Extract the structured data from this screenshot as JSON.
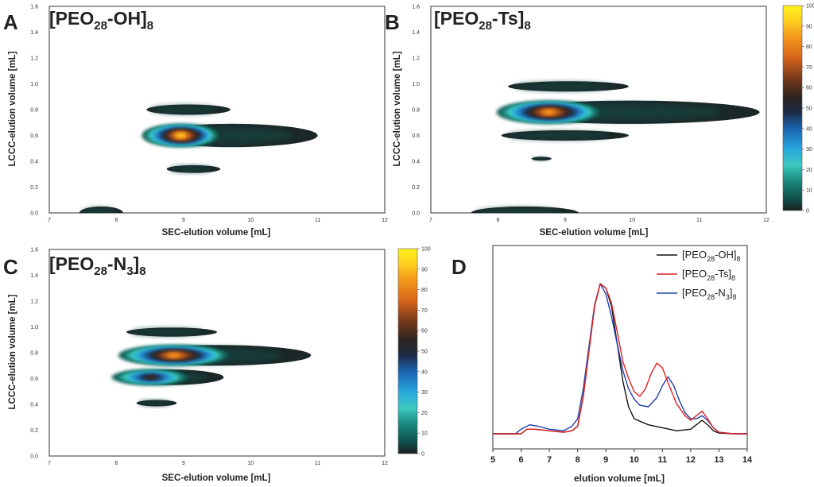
{
  "chart_data": [
    {
      "type": "heatmap",
      "panel": "A",
      "title": {
        "pre": "[PEO",
        "sub1": "28",
        "mid": "-OH]",
        "sub2": "8",
        "plain": "[PEO28-OH]8"
      },
      "xlabel": "SEC-elution volume [mL]",
      "ylabel": "LCCC-elution volume [mL]",
      "xlim": [
        7,
        12
      ],
      "ylim": [
        0.0,
        1.6
      ],
      "xticks": [
        "7",
        "8",
        "9",
        "10",
        "11",
        "12"
      ],
      "yticks": [
        "0.0",
        "0.2",
        "0.4",
        "0.6",
        "0.8",
        "1.0",
        "1.2",
        "1.4",
        "1.6"
      ],
      "blobs": [
        {
          "name": "main",
          "x_range": [
            8.45,
            11.0
          ],
          "y_center": 0.6,
          "y_halfwidth": 0.09,
          "peak_x": 8.95,
          "peak_intensity": 95
        },
        {
          "name": "upper",
          "x_range": [
            8.45,
            9.7
          ],
          "y_center": 0.8,
          "y_halfwidth": 0.04,
          "peak_intensity": 45
        },
        {
          "name": "lower",
          "x_range": [
            8.75,
            9.55
          ],
          "y_center": 0.34,
          "y_halfwidth": 0.03,
          "peak_intensity": 45
        },
        {
          "name": "baseline",
          "x_range": [
            7.45,
            8.1
          ],
          "y_center": 0.0,
          "y_halfwidth": 0.05,
          "peak_intensity": 45
        }
      ]
    },
    {
      "type": "heatmap",
      "panel": "B",
      "title": {
        "pre": "[PEO",
        "sub1": "28",
        "mid": "-Ts]",
        "sub2": "8",
        "plain": "[PEO28-Ts]8"
      },
      "xlabel": "SEC-elution volume [mL]",
      "ylabel": "LCCC-elution volume [mL]",
      "xlim": [
        7,
        12
      ],
      "ylim": [
        0.0,
        1.6
      ],
      "xticks": [
        "7",
        "8",
        "9",
        "10",
        "11",
        "12"
      ],
      "yticks": [
        "0.0",
        "0.2",
        "0.4",
        "0.6",
        "0.8",
        "1.0",
        "1.2",
        "1.4",
        "1.6"
      ],
      "blobs": [
        {
          "name": "main",
          "x_range": [
            8.05,
            11.9
          ],
          "y_center": 0.78,
          "y_halfwidth": 0.09,
          "peak_x": 8.75,
          "peak_intensity": 85
        },
        {
          "name": "upper",
          "x_range": [
            8.15,
            9.95
          ],
          "y_center": 0.98,
          "y_halfwidth": 0.04,
          "peak_intensity": 45
        },
        {
          "name": "lower",
          "x_range": [
            8.05,
            9.95
          ],
          "y_center": 0.6,
          "y_halfwidth": 0.04,
          "peak_intensity": 45
        },
        {
          "name": "spot",
          "x_range": [
            8.5,
            8.8
          ],
          "y_center": 0.42,
          "y_halfwidth": 0.015,
          "peak_intensity": 45
        },
        {
          "name": "baseline",
          "x_range": [
            7.6,
            9.2
          ],
          "y_center": 0.0,
          "y_halfwidth": 0.05,
          "peak_intensity": 45
        }
      ]
    },
    {
      "type": "heatmap",
      "panel": "C",
      "title": {
        "pre": "[PEO",
        "sub1": "28",
        "mid": "-N",
        "sub2": "3",
        "post": "]",
        "sub3": "8",
        "plain": "[PEO28-N3]8"
      },
      "xlabel": "SEC-elution volume [mL]",
      "ylabel": "LCCC-elution volume [mL]",
      "xlim": [
        7,
        12
      ],
      "ylim": [
        0.0,
        1.6
      ],
      "xticks": [
        "7",
        "8",
        "9",
        "10",
        "11",
        "12"
      ],
      "yticks": [
        "0.0",
        "0.2",
        "0.4",
        "0.6",
        "0.8",
        "1.0",
        "1.2",
        "1.4",
        "1.6"
      ],
      "blobs": [
        {
          "name": "main",
          "x_range": [
            8.1,
            10.9
          ],
          "y_center": 0.78,
          "y_halfwidth": 0.08,
          "peak_x": 8.85,
          "peak_intensity": 85
        },
        {
          "name": "upper",
          "x_range": [
            8.15,
            9.5
          ],
          "y_center": 0.96,
          "y_halfwidth": 0.035,
          "peak_intensity": 45
        },
        {
          "name": "lower",
          "x_range": [
            8.0,
            9.6
          ],
          "y_center": 0.61,
          "y_halfwidth": 0.06,
          "peak_x": 8.5,
          "peak_intensity": 60
        },
        {
          "name": "spot",
          "x_range": [
            8.3,
            8.9
          ],
          "y_center": 0.41,
          "y_halfwidth": 0.025,
          "peak_intensity": 45
        }
      ]
    },
    {
      "type": "line",
      "panel": "D",
      "xlabel": "elution volume [mL]",
      "ylabel": "",
      "xlim": [
        5,
        14
      ],
      "ylim": [
        0,
        1.05
      ],
      "xticks": [
        "5",
        "6",
        "7",
        "8",
        "9",
        "10",
        "11",
        "12",
        "13",
        "14"
      ],
      "series": [
        {
          "name": "[PEO28-OH]8",
          "label": {
            "pre": "[PEO",
            "sub1": "28",
            "mid": "-OH]",
            "sub2": "8"
          },
          "color": "#111111",
          "x": [
            5.0,
            6.0,
            6.2,
            6.5,
            7.0,
            7.5,
            7.8,
            8.0,
            8.2,
            8.4,
            8.6,
            8.8,
            9.0,
            9.2,
            9.4,
            9.6,
            9.8,
            10.0,
            10.5,
            11.0,
            11.5,
            12.0,
            12.2,
            12.4,
            12.6,
            12.8,
            13.0,
            13.5,
            14.0
          ],
          "y": [
            0.0,
            0.0,
            0.03,
            0.03,
            0.02,
            0.01,
            0.02,
            0.05,
            0.25,
            0.55,
            0.85,
            1.0,
            0.97,
            0.85,
            0.6,
            0.35,
            0.18,
            0.1,
            0.06,
            0.04,
            0.02,
            0.03,
            0.06,
            0.09,
            0.06,
            0.02,
            0.005,
            0.0,
            0.0
          ]
        },
        {
          "name": "[PEO28-Ts]8",
          "label": {
            "pre": "[PEO",
            "sub1": "28",
            "mid": "-Ts]",
            "sub2": "8"
          },
          "color": "#e02020",
          "x": [
            5.0,
            6.0,
            6.2,
            6.5,
            7.0,
            7.5,
            7.8,
            8.0,
            8.2,
            8.4,
            8.6,
            8.8,
            9.0,
            9.2,
            9.4,
            9.6,
            9.8,
            10.0,
            10.2,
            10.4,
            10.6,
            10.8,
            11.0,
            11.2,
            11.5,
            11.8,
            12.0,
            12.2,
            12.4,
            12.6,
            12.8,
            13.0,
            13.5,
            14.0
          ],
          "y": [
            0.0,
            0.0,
            0.03,
            0.03,
            0.02,
            0.01,
            0.02,
            0.05,
            0.25,
            0.55,
            0.85,
            1.0,
            0.97,
            0.87,
            0.68,
            0.48,
            0.37,
            0.28,
            0.25,
            0.3,
            0.4,
            0.47,
            0.44,
            0.34,
            0.2,
            0.12,
            0.09,
            0.12,
            0.15,
            0.1,
            0.04,
            0.01,
            0.0,
            0.0
          ]
        },
        {
          "name": "[PEO28-N3]8",
          "label": {
            "pre": "[PEO",
            "sub1": "28",
            "mid": "-N",
            "sub2": "3",
            "post": "]",
            "sub3": "8"
          },
          "color": "#2040b0",
          "x": [
            5.0,
            5.8,
            6.0,
            6.3,
            6.6,
            7.0,
            7.5,
            7.8,
            8.0,
            8.2,
            8.4,
            8.6,
            8.8,
            9.0,
            9.2,
            9.4,
            9.6,
            9.8,
            10.0,
            10.2,
            10.5,
            10.8,
            11.0,
            11.2,
            11.4,
            11.6,
            11.8,
            12.0,
            12.2,
            12.4,
            12.6,
            12.8,
            13.0,
            13.5,
            14.0
          ],
          "y": [
            0.0,
            0.0,
            0.03,
            0.06,
            0.05,
            0.03,
            0.02,
            0.05,
            0.1,
            0.3,
            0.58,
            0.86,
            1.0,
            0.93,
            0.78,
            0.6,
            0.42,
            0.3,
            0.23,
            0.19,
            0.18,
            0.24,
            0.32,
            0.38,
            0.32,
            0.22,
            0.14,
            0.1,
            0.1,
            0.12,
            0.09,
            0.04,
            0.01,
            0.0,
            0.0
          ]
        }
      ]
    }
  ],
  "colorbar": {
    "ticks": [
      "0",
      "10",
      "20",
      "30",
      "40",
      "50",
      "60",
      "70",
      "80",
      "90",
      "100"
    ],
    "stops": [
      {
        "value": 0,
        "color": "#1f1f1f"
      },
      {
        "value": 5,
        "color": "#0f4a45"
      },
      {
        "value": 15,
        "color": "#1a8c82"
      },
      {
        "value": 22,
        "color": "#3cc9bf"
      },
      {
        "value": 30,
        "color": "#29a9df"
      },
      {
        "value": 40,
        "color": "#1a64b0"
      },
      {
        "value": 48,
        "color": "#1c2b44"
      },
      {
        "value": 55,
        "color": "#2b2421"
      },
      {
        "value": 65,
        "color": "#7a3a1a"
      },
      {
        "value": 75,
        "color": "#d9661a"
      },
      {
        "value": 85,
        "color": "#f49a1c"
      },
      {
        "value": 93,
        "color": "#ffd21f"
      },
      {
        "value": 100,
        "color": "#fff21e"
      }
    ]
  }
}
